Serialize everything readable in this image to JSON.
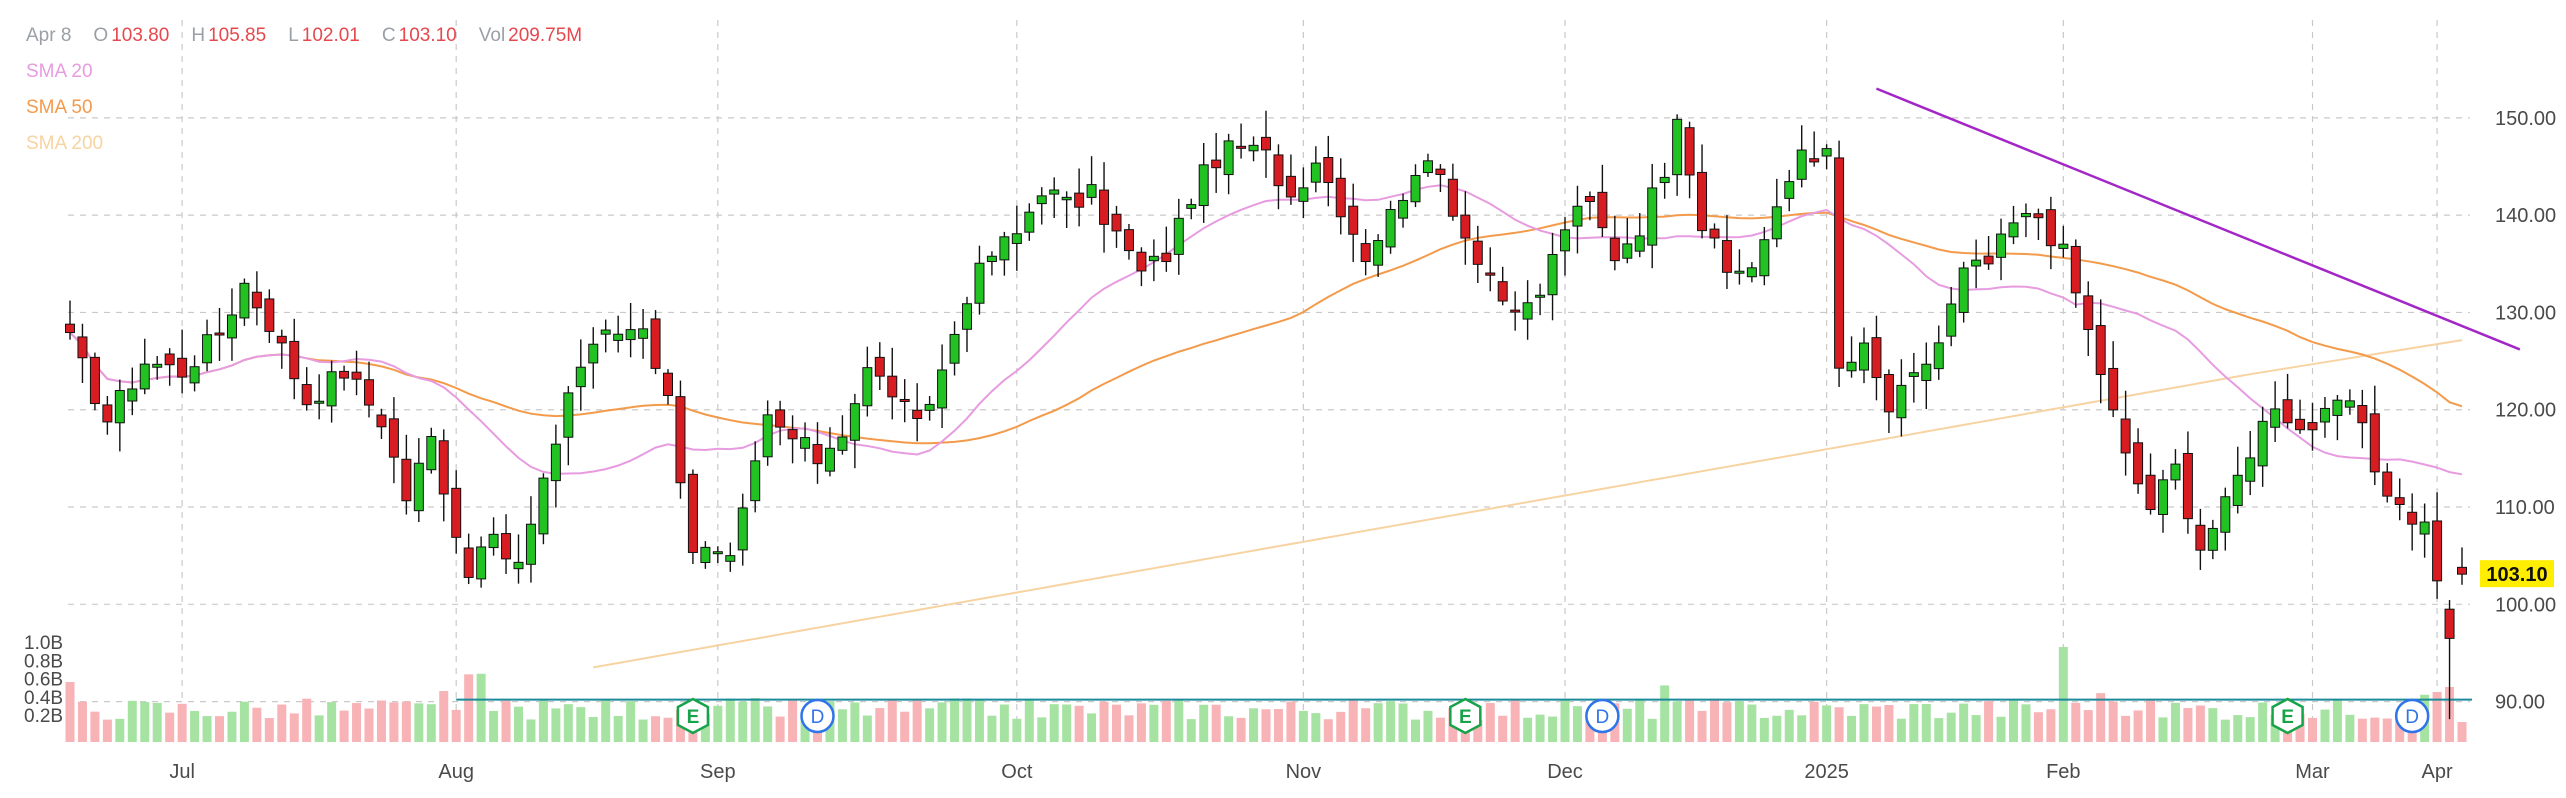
{
  "header": {
    "date": "Apr 8",
    "ohlc": [
      {
        "label": "O",
        "value": "103.80"
      },
      {
        "label": "H",
        "value": "105.85"
      },
      {
        "label": "L",
        "value": "102.01"
      },
      {
        "label": "C",
        "value": "103.10"
      },
      {
        "label": "Vol",
        "value": "209.75M"
      }
    ]
  },
  "indicators": [
    {
      "label": "SMA 20",
      "color": "#e79be0"
    },
    {
      "label": "SMA 50",
      "color": "#f39a4b"
    },
    {
      "label": "SMA 200",
      "color": "#f8d3a2"
    }
  ],
  "colors": {
    "up": "#22c222",
    "down": "#d71c22",
    "volume_up": "#a6e3a3",
    "volume_down": "#f7b3b5",
    "trendline": "#a327c6",
    "support": "#1b8a9a",
    "price_badge": "#ffee00",
    "earnings": "#17a34a",
    "dividend": "#2f74e8"
  },
  "chart_data": {
    "type": "candlestick",
    "x_ticks": [
      "Jul",
      "Aug",
      "Sep",
      "Oct",
      "Nov",
      "Dec",
      "2025",
      "Feb",
      "Mar",
      "Apr"
    ],
    "y_ticks": [
      "90.00",
      "100.00",
      "110.00",
      "120.00",
      "130.00",
      "140.00",
      "150.00"
    ],
    "ylim": [
      84,
      158
    ],
    "volume_ticks": [
      "0.2B",
      "0.4B",
      "0.6B",
      "0.8B",
      "1.0B"
    ],
    "current_price": "103.10",
    "support_level": 90.2,
    "trendline": {
      "from": {
        "date": "2025-01-07",
        "price": 153.0
      },
      "to": {
        "date": "2025-04-09",
        "price": 126.2
      }
    },
    "events": [
      {
        "type": "earnings",
        "label": "E",
        "date": "2024-08-28"
      },
      {
        "type": "dividend",
        "label": "D",
        "date": "2024-09-12"
      },
      {
        "type": "earnings",
        "label": "E",
        "date": "2024-11-20"
      },
      {
        "type": "dividend",
        "label": "D",
        "date": "2024-12-05"
      },
      {
        "type": "earnings",
        "label": "E",
        "date": "2025-02-26"
      },
      {
        "type": "dividend",
        "label": "D",
        "date": "2025-03-12"
      }
    ],
    "waypoints": [
      [
        0,
        127
      ],
      [
        3,
        119
      ],
      [
        6,
        125
      ],
      [
        9,
        124
      ],
      [
        12,
        128
      ],
      [
        14,
        133
      ],
      [
        16,
        129
      ],
      [
        19,
        121
      ],
      [
        22,
        124
      ],
      [
        25,
        119
      ],
      [
        27,
        111
      ],
      [
        29,
        117
      ],
      [
        32,
        103
      ],
      [
        33,
        107
      ],
      [
        36,
        104
      ],
      [
        38,
        112
      ],
      [
        40,
        122
      ],
      [
        42,
        127
      ],
      [
        44,
        128
      ],
      [
        46,
        129
      ],
      [
        48,
        121
      ],
      [
        50,
        106
      ],
      [
        53,
        104
      ],
      [
        56,
        119
      ],
      [
        58,
        117
      ],
      [
        60,
        115
      ],
      [
        62,
        118
      ],
      [
        64,
        124
      ],
      [
        66,
        122
      ],
      [
        68,
        118
      ],
      [
        70,
        124
      ],
      [
        72,
        132
      ],
      [
        74,
        136
      ],
      [
        76,
        138
      ],
      [
        78,
        143
      ],
      [
        80,
        141
      ],
      [
        82,
        142
      ],
      [
        84,
        138
      ],
      [
        86,
        134
      ],
      [
        88,
        136
      ],
      [
        90,
        142
      ],
      [
        92,
        146
      ],
      [
        94,
        147
      ],
      [
        96,
        146
      ],
      [
        98,
        142
      ],
      [
        100,
        146
      ],
      [
        102,
        141
      ],
      [
        104,
        136
      ],
      [
        106,
        140
      ],
      [
        108,
        145
      ],
      [
        110,
        144
      ],
      [
        112,
        138
      ],
      [
        114,
        134
      ],
      [
        116,
        129
      ],
      [
        118,
        132
      ],
      [
        120,
        139
      ],
      [
        122,
        141
      ],
      [
        124,
        136
      ],
      [
        126,
        139
      ],
      [
        128,
        145
      ],
      [
        129,
        151
      ],
      [
        131,
        139
      ],
      [
        133,
        134
      ],
      [
        135,
        135
      ],
      [
        137,
        140
      ],
      [
        139,
        147
      ],
      [
        141,
        146
      ],
      [
        142,
        124
      ],
      [
        144,
        126
      ],
      [
        146,
        120
      ],
      [
        148,
        123
      ],
      [
        150,
        127
      ],
      [
        152,
        134
      ],
      [
        154,
        135
      ],
      [
        156,
        139
      ],
      [
        158,
        140
      ],
      [
        160,
        136
      ],
      [
        162,
        128
      ],
      [
        163,
        124
      ],
      [
        165,
        115
      ],
      [
        167,
        110
      ],
      [
        169,
        114
      ],
      [
        171,
        106
      ],
      [
        173,
        110
      ],
      [
        175,
        116
      ],
      [
        177,
        121
      ],
      [
        179,
        118
      ],
      [
        181,
        119
      ],
      [
        183,
        121
      ],
      [
        185,
        114
      ],
      [
        187,
        110
      ],
      [
        189,
        108
      ],
      [
        190,
        103
      ],
      [
        191,
        97
      ],
      [
        192,
        103
      ]
    ]
  }
}
